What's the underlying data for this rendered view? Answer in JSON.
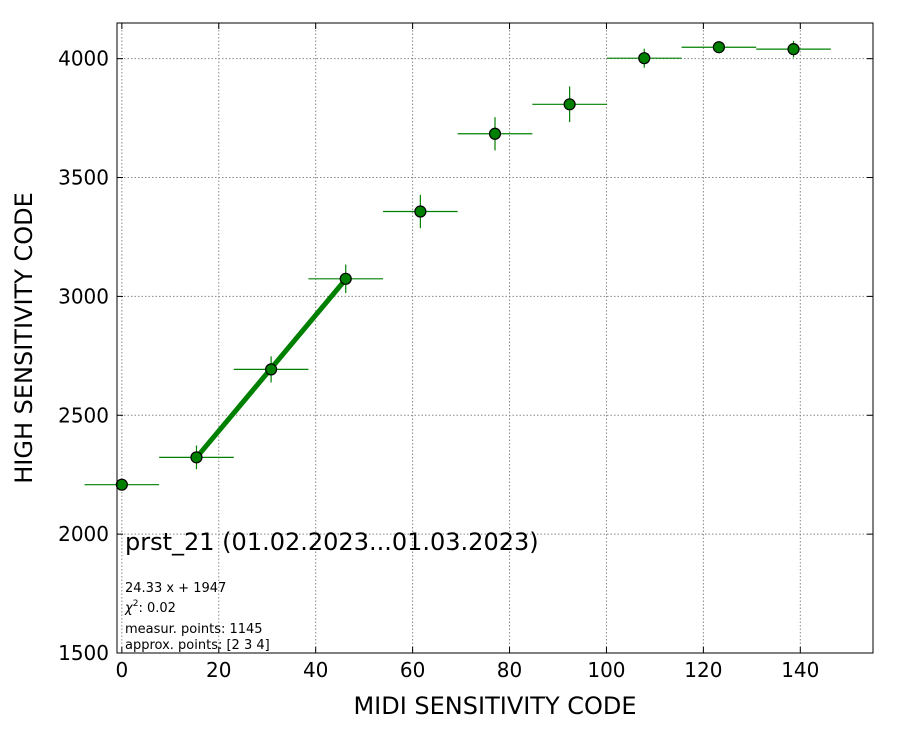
{
  "chart_data": {
    "type": "scatter",
    "xlabel": "MIDI SENSITIVITY CODE",
    "ylabel": "HIGH SENSITIVITY CODE",
    "xlim": [
      -1,
      155
    ],
    "ylim": [
      1500,
      4150
    ],
    "grid": true,
    "x_ticks": [
      0,
      20,
      40,
      60,
      80,
      100,
      120,
      140
    ],
    "y_ticks": [
      1500,
      2000,
      2500,
      3000,
      3500,
      4000
    ],
    "marker_color": "#008000",
    "errorbar_color": "#008000",
    "fit_line_color": "#008000",
    "points": [
      {
        "x": 0,
        "y": 2208,
        "xerr": 7.7,
        "yerr": 20
      },
      {
        "x": 15.4,
        "y": 2323,
        "xerr": 7.7,
        "yerr": 50
      },
      {
        "x": 30.8,
        "y": 2693,
        "xerr": 7.7,
        "yerr": 55
      },
      {
        "x": 46.2,
        "y": 3074,
        "xerr": 7.7,
        "yerr": 60
      },
      {
        "x": 61.6,
        "y": 3357,
        "xerr": 7.7,
        "yerr": 70
      },
      {
        "x": 77.0,
        "y": 3684,
        "xerr": 7.7,
        "yerr": 70
      },
      {
        "x": 92.4,
        "y": 3808,
        "xerr": 7.7,
        "yerr": 75
      },
      {
        "x": 107.8,
        "y": 4002,
        "xerr": 7.7,
        "yerr": 40
      },
      {
        "x": 123.2,
        "y": 4048,
        "xerr": 7.7,
        "yerr": 20
      },
      {
        "x": 138.6,
        "y": 4040,
        "xerr": 7.7,
        "yerr": 35
      }
    ],
    "fit_line": {
      "x": [
        15.4,
        46.2
      ],
      "y": [
        2322,
        3072
      ]
    },
    "annotations": {
      "title": "prst_21 (01.02.2023...01.03.2023)",
      "equation": "24.33 x + 1947",
      "chi2_label": "χ",
      "chi2_sup": "2",
      "chi2_value": ": 0.02",
      "measur_points": "measur. points: 1145",
      "approx_points": "approx. points: [2 3 4]"
    }
  }
}
